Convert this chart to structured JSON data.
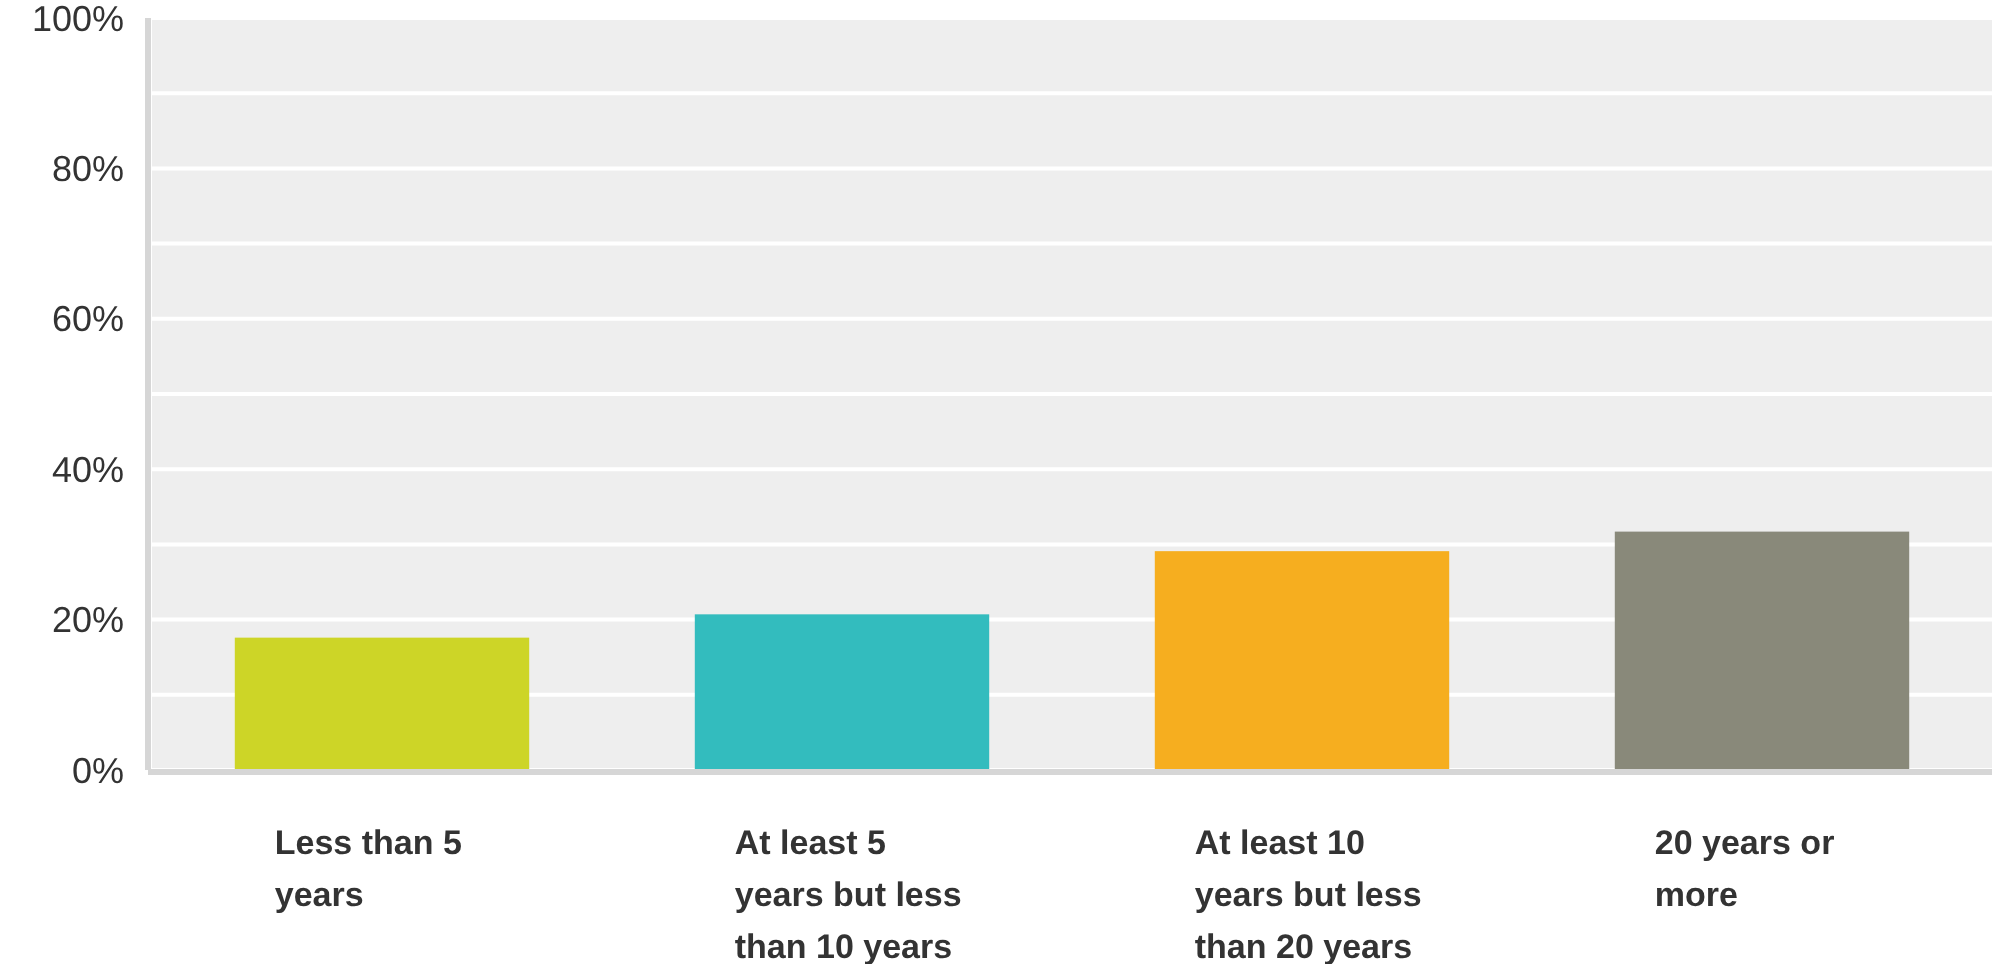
{
  "chart_data": {
    "type": "bar",
    "categories": [
      "Less than 5 years",
      "At least 5 years but less than 10 years",
      "At least 10 years but less than 20 years",
      "20 years or more"
    ],
    "values": [
      17.6,
      20.7,
      29.1,
      31.7
    ],
    "colors": [
      "#cdd527",
      "#33bcbe",
      "#f6ae1f",
      "#89897a"
    ],
    "ylim": [
      0,
      100
    ],
    "yticks": [
      {
        "value": 0,
        "label": "0%"
      },
      {
        "value": 10,
        "label": null
      },
      {
        "value": 20,
        "label": "20%"
      },
      {
        "value": 30,
        "label": null
      },
      {
        "value": 40,
        "label": "40%"
      },
      {
        "value": 50,
        "label": null
      },
      {
        "value": 60,
        "label": "60%"
      },
      {
        "value": 70,
        "label": null
      },
      {
        "value": 80,
        "label": "80%"
      },
      {
        "value": 90,
        "label": null
      },
      {
        "value": 100,
        "label": "100%"
      }
    ],
    "grid": true
  }
}
